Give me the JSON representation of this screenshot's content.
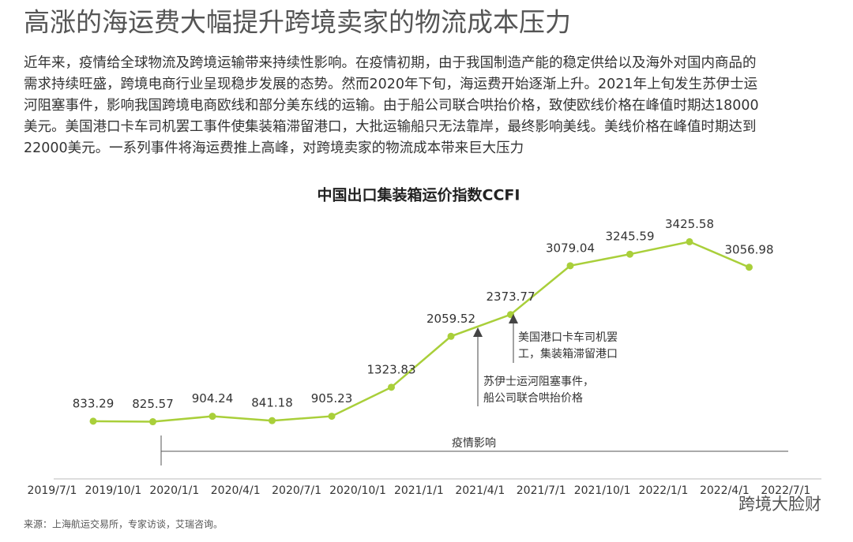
{
  "header": {
    "title": "高涨的海运费大幅提升跨境卖家的物流成本压力",
    "paragraph": [
      "近年来，疫情给全球物流及跨境运输带来持续性影响。在疫情初期，由于我国制造产能的稳定供给以及海外对国内商品的",
      "需求持续旺盛，跨境电商行业呈现稳步发展的态势。然而2020年下旬，海运费开始逐渐上升。2021年上旬发生苏伊士运",
      "河阻塞事件，影响我国跨境电商欧线和部分美东线的运输。由于船公司联合哄抬价格，致使欧线价格在峰值时期达18000",
      "美元。美国港口卡车司机罢工事件使集装箱滞留港口，大批运输船只无法靠岸，最终影响美线。美线价格在峰值时期达到",
      "22000美元。一系列事件将海运费推上高峰，对跨境卖家的物流成本带来巨大压力"
    ]
  },
  "chart_data": {
    "type": "line",
    "title": "中国出口集装箱运价指数CCFI",
    "xtick_labels": [
      "2019/7/1",
      "2019/10/1",
      "2020/1/1",
      "2020/4/1",
      "2020/7/1",
      "2020/10/1",
      "2021/1/1",
      "2021/4/1",
      "2021/7/1",
      "2021/10/1",
      "2022/1/1",
      "2022/4/1",
      "2022/7/1"
    ],
    "values": [
      833.29,
      825.57,
      904.24,
      841.18,
      905.23,
      1323.83,
      2059.52,
      2373.77,
      3079.04,
      3245.59,
      3425.58,
      3056.98
    ],
    "color": "#a9cf3a",
    "ylim": [
      0,
      4000
    ],
    "annotations": [
      {
        "lines": [
          "苏伊士运河阻塞事件，",
          "船公司联合哄抬价格"
        ]
      },
      {
        "lines": [
          "美国港口卡车司机罢",
          "工，集装箱滞留港口"
        ]
      },
      {
        "lines": [
          "疫情影响"
        ]
      }
    ]
  },
  "footer": {
    "source": "来源：上海航运交易所，专家访谈，艾瑞咨询。",
    "watermark": "跨境大脸财"
  }
}
